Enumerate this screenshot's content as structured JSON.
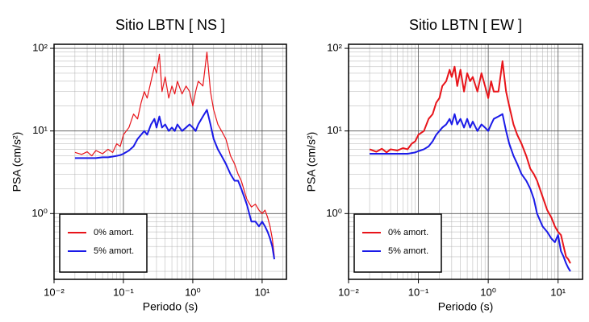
{
  "chart_data": [
    {
      "type": "line",
      "title": "Sitio LBTN [ NS ]",
      "x_label": "Periodo (s)",
      "y_label": "PSA (cm/s²)",
      "x": [
        0.02,
        0.025,
        0.03,
        0.035,
        0.04,
        0.05,
        0.06,
        0.07,
        0.08,
        0.09,
        0.1,
        0.12,
        0.14,
        0.16,
        0.18,
        0.2,
        0.22,
        0.25,
        0.28,
        0.3,
        0.33,
        0.36,
        0.4,
        0.45,
        0.5,
        0.55,
        0.6,
        0.7,
        0.8,
        0.9,
        1.0,
        1.1,
        1.2,
        1.4,
        1.6,
        1.8,
        2.0,
        2.3,
        2.6,
        3.0,
        3.5,
        4.0,
        4.5,
        5,
        6,
        7,
        8,
        9,
        10,
        11,
        12,
        13,
        14,
        15
      ],
      "series": [
        {
          "name": "0% amort.",
          "color": "#e8141a",
          "line_width": 1.2,
          "values": [
            5.5,
            5.2,
            5.6,
            5.0,
            5.8,
            5.3,
            6.0,
            5.5,
            7,
            6.5,
            9,
            11,
            16,
            14,
            22,
            30,
            25,
            40,
            60,
            50,
            85,
            30,
            45,
            25,
            35,
            28,
            40,
            28,
            35,
            30,
            20,
            30,
            40,
            35,
            90,
            30,
            18,
            12,
            10,
            8,
            5,
            4,
            3,
            2.5,
            1.5,
            1.2,
            1.3,
            1.1,
            1.0,
            1.1,
            0.9,
            0.7,
            0.5,
            0.3
          ]
        },
        {
          "name": "5% amort.",
          "color": "#1a1ae8",
          "line_width": 2,
          "values": [
            4.7,
            4.7,
            4.7,
            4.7,
            4.7,
            4.8,
            4.8,
            4.9,
            5.0,
            5.1,
            5.3,
            5.8,
            6.5,
            8,
            9,
            10,
            9,
            12,
            14,
            11,
            15,
            11,
            12,
            10,
            11,
            10,
            12,
            10,
            11,
            12,
            11,
            10,
            12,
            15,
            18,
            12,
            8,
            6,
            5,
            4,
            3,
            2.5,
            2.5,
            2,
            1.3,
            0.8,
            0.8,
            0.7,
            0.8,
            0.7,
            0.6,
            0.5,
            0.4,
            0.28
          ]
        }
      ],
      "xlim": [
        0.01,
        22.4
      ],
      "ylim": [
        0.16,
        112
      ],
      "log_x": true,
      "log_y": true,
      "grid": true,
      "legend": "lower left",
      "xticks": [
        {
          "value": 0.01,
          "label": "10⁻²"
        },
        {
          "value": 0.1,
          "label": "10⁻¹"
        },
        {
          "value": 1,
          "label": "10⁰"
        },
        {
          "value": 10,
          "label": "10¹"
        }
      ],
      "yticks": [
        {
          "value": 1,
          "label": "10⁰"
        },
        {
          "value": 10,
          "label": "10¹"
        },
        {
          "value": 100,
          "label": "10²"
        }
      ]
    },
    {
      "type": "line",
      "title": "Sitio LBTN [ EW ]",
      "x_label": "Periodo (s)",
      "y_label": "PSA (cm/s²)",
      "x": [
        0.02,
        0.025,
        0.03,
        0.035,
        0.04,
        0.05,
        0.06,
        0.07,
        0.08,
        0.09,
        0.1,
        0.12,
        0.14,
        0.16,
        0.18,
        0.2,
        0.22,
        0.25,
        0.28,
        0.3,
        0.33,
        0.36,
        0.4,
        0.45,
        0.5,
        0.55,
        0.6,
        0.7,
        0.8,
        0.9,
        1.0,
        1.1,
        1.2,
        1.4,
        1.6,
        1.8,
        2.0,
        2.3,
        2.6,
        3.0,
        3.5,
        4.0,
        4.5,
        5,
        6,
        7,
        8,
        9,
        10,
        11,
        12,
        13,
        14,
        15
      ],
      "series": [
        {
          "name": "0% amort.",
          "color": "#e8141a",
          "line_width": 2,
          "values": [
            6.0,
            5.6,
            6.1,
            5.5,
            6.0,
            5.8,
            6.2,
            6.0,
            7,
            7.5,
            9,
            10,
            14,
            16,
            22,
            25,
            35,
            40,
            55,
            45,
            60,
            35,
            55,
            30,
            50,
            40,
            45,
            30,
            50,
            35,
            25,
            40,
            30,
            30,
            70,
            30,
            20,
            12,
            9,
            7,
            5,
            3.5,
            3,
            2.5,
            1.6,
            1.1,
            0.9,
            0.7,
            0.6,
            0.55,
            0.4,
            0.3,
            0.28,
            0.25
          ]
        },
        {
          "name": "5% amort.",
          "color": "#1a1ae8",
          "line_width": 2,
          "values": [
            5.3,
            5.3,
            5.3,
            5.3,
            5.3,
            5.3,
            5.3,
            5.3,
            5.4,
            5.5,
            5.7,
            6.0,
            6.5,
            7.5,
            9,
            10,
            11,
            12,
            14,
            12,
            16,
            12,
            14,
            11,
            14,
            11,
            13,
            10,
            12,
            11,
            10,
            12,
            14,
            15,
            16,
            10,
            7,
            5,
            4,
            3,
            2.5,
            2,
            1.5,
            1.0,
            0.7,
            0.6,
            0.5,
            0.45,
            0.55,
            0.35,
            0.3,
            0.25,
            0.22,
            0.2
          ]
        }
      ],
      "xlim": [
        0.01,
        22.4
      ],
      "ylim": [
        0.16,
        112
      ],
      "log_x": true,
      "log_y": true,
      "grid": true,
      "legend": "lower left",
      "xticks": [
        {
          "value": 0.01,
          "label": "10⁻²"
        },
        {
          "value": 0.1,
          "label": "10⁻¹"
        },
        {
          "value": 1,
          "label": "10⁰"
        },
        {
          "value": 10,
          "label": "10¹"
        }
      ],
      "yticks": [
        {
          "value": 1,
          "label": "10⁰"
        },
        {
          "value": 10,
          "label": "10¹"
        },
        {
          "value": 100,
          "label": "10²"
        }
      ]
    }
  ]
}
